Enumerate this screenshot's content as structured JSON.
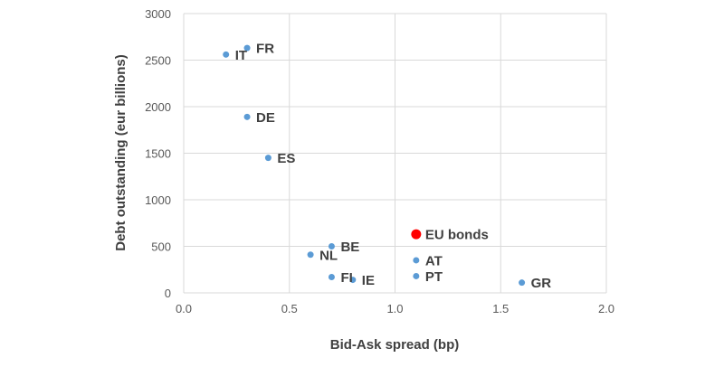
{
  "chart_data": {
    "type": "scatter",
    "title": "",
    "xlabel": "Bid-Ask spread (bp)",
    "ylabel": "Debt outstanding (eur billions)",
    "xlim": [
      0,
      2
    ],
    "ylim": [
      0,
      3000
    ],
    "x_ticks": [
      "0.0",
      "0.5",
      "1.0",
      "1.5",
      "2.0"
    ],
    "y_ticks": [
      "0",
      "500",
      "1000",
      "1500",
      "2000",
      "2500",
      "3000"
    ],
    "grid": true,
    "legend": "none",
    "colors": {
      "series": "#5b9bd5",
      "highlight": "#ff0000"
    },
    "points": [
      {
        "label": "IT",
        "x": 0.2,
        "y": 2560
      },
      {
        "label": "FR",
        "x": 0.3,
        "y": 2630
      },
      {
        "label": "DE",
        "x": 0.3,
        "y": 1890
      },
      {
        "label": "ES",
        "x": 0.4,
        "y": 1450
      },
      {
        "label": "BE",
        "x": 0.7,
        "y": 500
      },
      {
        "label": "NL",
        "x": 0.6,
        "y": 410
      },
      {
        "label": "FI",
        "x": 0.7,
        "y": 170
      },
      {
        "label": "IE",
        "x": 0.8,
        "y": 140
      },
      {
        "label": "AT",
        "x": 1.1,
        "y": 350
      },
      {
        "label": "PT",
        "x": 1.1,
        "y": 180
      },
      {
        "label": "GR",
        "x": 1.6,
        "y": 110
      },
      {
        "label": "EU bonds",
        "x": 1.1,
        "y": 630,
        "highlight": true
      }
    ]
  }
}
